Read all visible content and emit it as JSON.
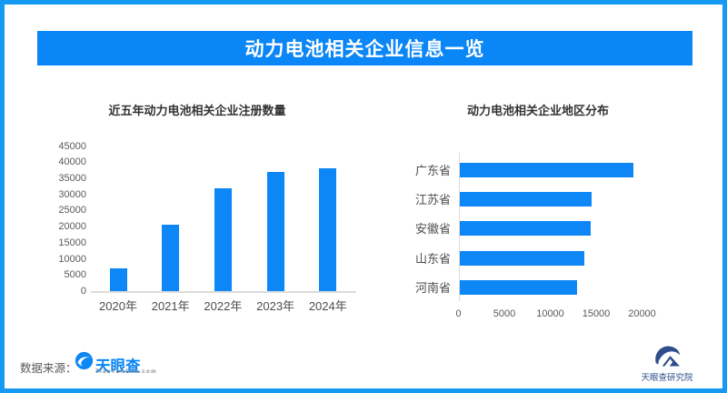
{
  "header": {
    "title": "动力电池相关企业信息一览"
  },
  "colors": {
    "accent": "#0a86f6",
    "bar": "#0c87f5",
    "border": "#149af2",
    "navy": "#2e4d8c",
    "axis": "#dcdcdc",
    "tick_text": "#595959"
  },
  "chart_data": [
    {
      "type": "bar",
      "orientation": "vertical",
      "title": "近五年动力电池相关企业注册数量",
      "categories": [
        "2020年",
        "2021年",
        "2022年",
        "2023年",
        "2024年"
      ],
      "values": [
        7000,
        20500,
        32000,
        37000,
        38200
      ],
      "xlabel": "",
      "ylabel": "",
      "ylim": [
        0,
        45000
      ],
      "yticks": [
        0,
        5000,
        10000,
        15000,
        20000,
        25000,
        30000,
        35000,
        40000,
        45000
      ],
      "grid": false,
      "legend": false
    },
    {
      "type": "bar",
      "orientation": "horizontal",
      "title": "动力电池相关企业地区分布",
      "categories": [
        "广东省",
        "江苏省",
        "安徽省",
        "山东省",
        "河南省"
      ],
      "values": [
        19000,
        14400,
        14300,
        13600,
        12800
      ],
      "xlabel": "",
      "ylabel": "",
      "xlim": [
        0,
        20000
      ],
      "xticks": [
        0,
        5000,
        10000,
        15000,
        20000
      ],
      "grid": false,
      "legend": false
    }
  ],
  "footer": {
    "source_label": "数据来源：",
    "source_logo_text": "天眼查",
    "source_logo_subtext": "TianYanCha.com",
    "research_logo_text": "天眼查研究院"
  }
}
